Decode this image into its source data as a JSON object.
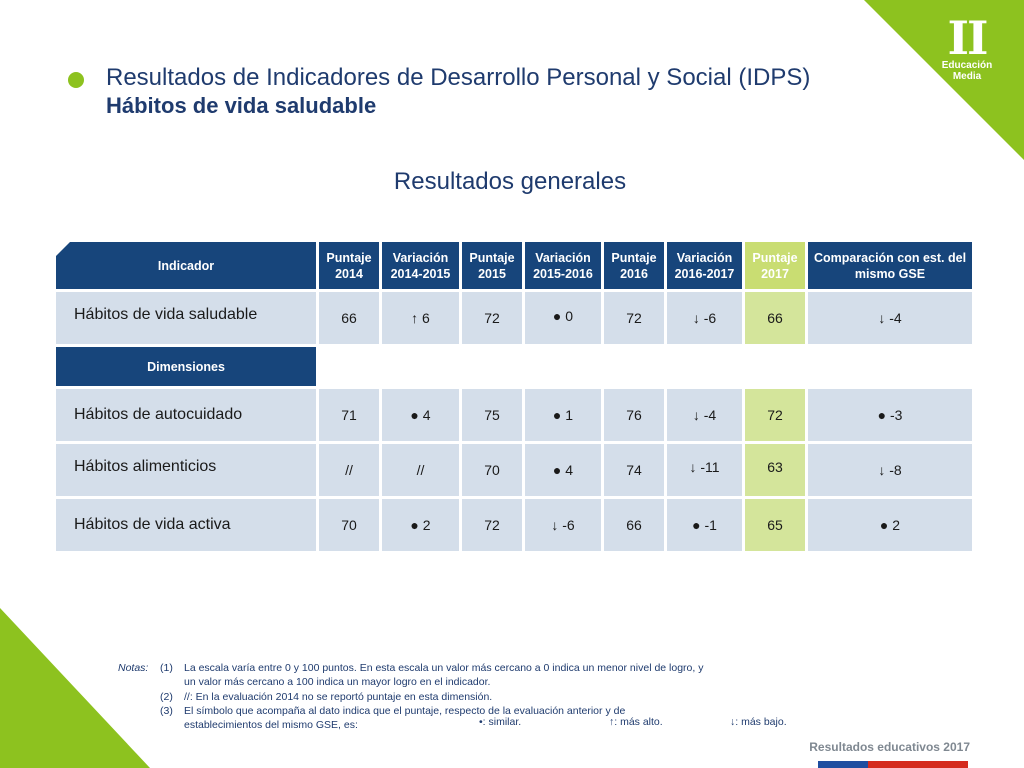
{
  "brand": {
    "mark": "II",
    "line1": "Educación",
    "line2": "Media"
  },
  "title": "Resultados de Indicadores de Desarrollo Personal y Social (IDPS)",
  "subtitle": "Hábitos de vida saludable",
  "section_title": "Resultados generales",
  "table": {
    "headers": {
      "indicator": "Indicador",
      "p2014": "Puntaje 2014",
      "v1415": "Variación 2014-2015",
      "p2015": "Puntaje 2015",
      "v1516": "Variación 2015-2016",
      "p2016": "Puntaje 2016",
      "v1617": "Variación 2016-2017",
      "p2017": "Puntaje 2017",
      "gse": "Comparación con est. del mismo GSE"
    },
    "dimensions_label": "Dimensiones",
    "main": {
      "label": "Hábitos de vida saludable",
      "p2014": "66",
      "v1415": "↑ 6",
      "p2015": "72",
      "v1516": "● 0",
      "p2016": "72",
      "v1617": "↓ -6",
      "p2017": "66",
      "gse": "↓ -4"
    },
    "rows": [
      {
        "label": "Hábitos de autocuidado",
        "p2014": "71",
        "v1415": "● 4",
        "p2015": "75",
        "v1516": "● 1",
        "p2016": "76",
        "v1617": "↓ -4",
        "p2017": "72",
        "gse": "● -3"
      },
      {
        "label": "Hábitos alimenticios",
        "p2014": "//",
        "v1415": "//",
        "p2015": "70",
        "v1516": "● 4",
        "p2016": "74",
        "v1617": "↓ -11",
        "p2017": "63",
        "gse": "↓ -8"
      },
      {
        "label": "Hábitos de vida activa",
        "p2014": "70",
        "v1415": "● 2",
        "p2015": "72",
        "v1516": "↓ -6",
        "p2016": "66",
        "v1617": "● -1",
        "p2017": "65",
        "gse": "● 2"
      }
    ]
  },
  "notes": {
    "label": "Notas:",
    "items": [
      {
        "num": "(1)",
        "line1": "La escala varía entre 0 y 100 puntos. En esta escala un valor más cercano a 0 indica un menor nivel de logro, y",
        "line2": "un valor más cercano a 100 indica un mayor logro en el indicador."
      },
      {
        "num": "(2)",
        "line1": "//:  En la evaluación 2014 no se reportó puntaje en esta dimensión."
      },
      {
        "num": "(3)",
        "line1": "El símbolo que acompaña al dato indica que el puntaje, respecto de la evaluación anterior y de",
        "line2": "establecimientos del mismo GSE, es:"
      }
    ],
    "legend": {
      "similar": "•: similar.",
      "higher": "↑: más alto.",
      "lower": "↓: más bajo."
    }
  },
  "footer": "Resultados educativos 2017",
  "colors": {
    "navy": "#17457b",
    "green": "#8dc21f",
    "highlight": "#d4e59b",
    "cell": "#d4deea"
  }
}
